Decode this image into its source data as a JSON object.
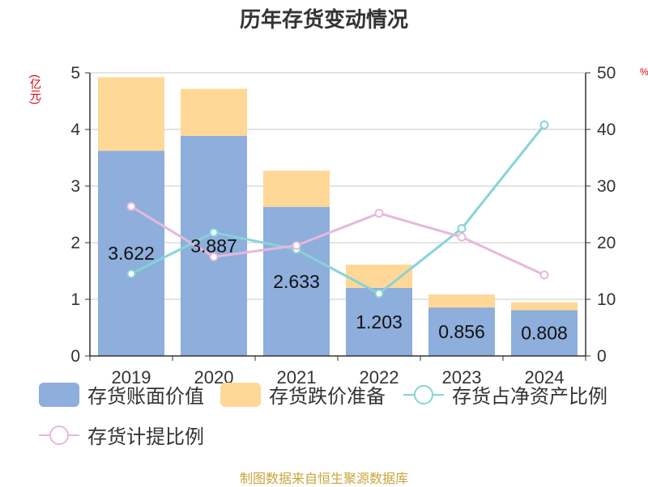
{
  "page": {
    "title": "历年存货变动情况",
    "unit_left": "(亿元)",
    "unit_right": "%",
    "source": "制图数据来自恒生聚源数据库"
  },
  "legend": [
    {
      "label": "存货账面价值",
      "type": "box",
      "color": "#8eaedc"
    },
    {
      "label": "存货跌价准备",
      "type": "box",
      "color": "#ffd897"
    },
    {
      "label": "存货占净资产比例",
      "type": "line",
      "color": "#86d4d6"
    },
    {
      "label": "存货计提比例",
      "type": "line",
      "color": "#e6b8dc"
    }
  ],
  "chart_data": {
    "type": "bar",
    "categories": [
      "2019",
      "2020",
      "2021",
      "2022",
      "2023",
      "2024"
    ],
    "ylim_left": [
      0,
      5
    ],
    "ylim_right": [
      0,
      50
    ],
    "yticks_left": [
      "0",
      "1",
      "2",
      "3",
      "4",
      "5"
    ],
    "yticks_right": [
      "0",
      "10",
      "20",
      "30",
      "40",
      "50"
    ],
    "grid": true,
    "legend_position": "bottom",
    "series": [
      {
        "name": "存货账面价值",
        "type": "bar",
        "stack": "total",
        "axis": "left",
        "color": "#8eaedc",
        "values": [
          3.622,
          3.887,
          2.633,
          1.203,
          0.856,
          0.808
        ],
        "labels": [
          "3.622",
          "3.887",
          "2.633",
          "1.203",
          "0.856",
          "0.808"
        ]
      },
      {
        "name": "存货跌价准备",
        "type": "bar",
        "stack": "total",
        "axis": "left",
        "color": "#ffd897",
        "values": [
          1.3,
          0.83,
          0.64,
          0.41,
          0.23,
          0.14
        ]
      },
      {
        "name": "存货占净资产比例",
        "type": "line",
        "axis": "right",
        "color": "#86d4d6",
        "values": [
          14.5,
          21.8,
          18.8,
          11.0,
          22.5,
          40.8
        ]
      },
      {
        "name": "存货计提比例",
        "type": "line",
        "axis": "right",
        "color": "#e6b8dc",
        "values": [
          26.4,
          17.5,
          19.5,
          25.2,
          21.0,
          14.3
        ]
      }
    ]
  }
}
